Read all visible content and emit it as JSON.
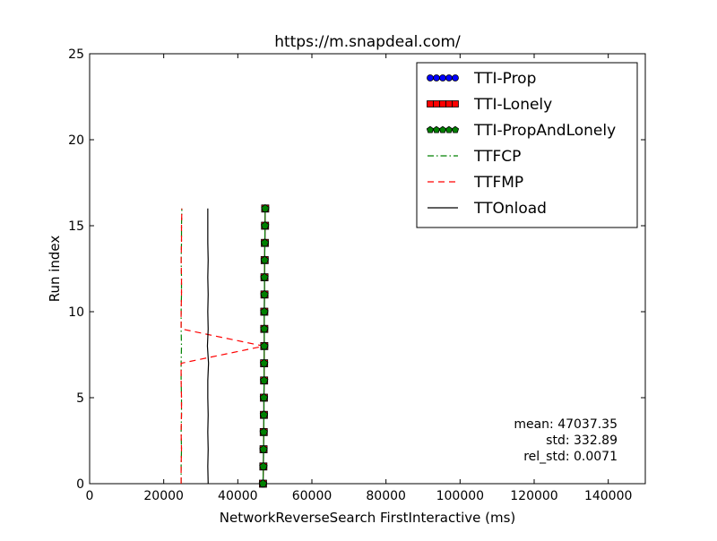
{
  "chart_data": {
    "type": "line",
    "title": "https://m.snapdeal.com/",
    "xlabel": "NetworkReverseSearch FirstInteractive (ms)",
    "ylabel": "Run index",
    "xlim": [
      0,
      150000
    ],
    "ylim": [
      0,
      25
    ],
    "xticks": [
      0,
      20000,
      40000,
      60000,
      80000,
      100000,
      120000,
      140000
    ],
    "xtick_labels": [
      "0",
      "20000",
      "40000",
      "60000",
      "80000",
      "100000",
      "120000",
      "140000"
    ],
    "yticks": [
      0,
      5,
      10,
      15,
      20,
      25
    ],
    "ytick_labels": [
      "0",
      "5",
      "10",
      "15",
      "20",
      "25"
    ],
    "grid": false,
    "legend_position": "top-right",
    "y": [
      0,
      1,
      2,
      3,
      4,
      5,
      6,
      7,
      8,
      9,
      10,
      11,
      12,
      13,
      14,
      15,
      16
    ],
    "series": [
      {
        "name": "TTI-Prop",
        "style": "line-marker",
        "marker": "circle",
        "color": "#0000ff",
        "line_color": "#0000ff",
        "x": [
          46800,
          46900,
          46950,
          47000,
          47050,
          47050,
          47100,
          47100,
          47150,
          47150,
          47150,
          47200,
          47200,
          47250,
          47300,
          47350,
          47400
        ]
      },
      {
        "name": "TTI-Lonely",
        "style": "line-marker",
        "marker": "square",
        "color": "#ff0000",
        "line_color": "#ff0000",
        "x": [
          46800,
          46900,
          46950,
          47000,
          47050,
          47050,
          47100,
          47100,
          47150,
          47150,
          47150,
          47200,
          47200,
          47250,
          47300,
          47350,
          47400
        ]
      },
      {
        "name": "TTI-PropAndLonely",
        "style": "line-marker",
        "marker": "pentagon",
        "color": "#008000",
        "line_color": "#008000",
        "x": [
          46800,
          46900,
          46950,
          47000,
          47050,
          47050,
          47100,
          47100,
          47150,
          47150,
          47150,
          47200,
          47200,
          47250,
          47300,
          47350,
          47400
        ]
      },
      {
        "name": "TTFCP",
        "style": "dashdot",
        "color": "#008000",
        "x": [
          24700,
          24700,
          24800,
          24700,
          24800,
          24800,
          24700,
          24700,
          24800,
          24700,
          24700,
          24800,
          24800,
          24700,
          24800,
          24800,
          24900
        ]
      },
      {
        "name": "TTFMP",
        "style": "dashed",
        "color": "#ff0000",
        "x": [
          24700,
          24700,
          24800,
          24700,
          24800,
          24800,
          24700,
          24700,
          47000,
          24700,
          24700,
          24800,
          24800,
          24700,
          24800,
          24800,
          24900
        ]
      },
      {
        "name": "TTOnload",
        "style": "solid",
        "color": "#000000",
        "x": [
          32000,
          31900,
          32000,
          31900,
          32000,
          31900,
          31900,
          32100,
          31800,
          32000,
          31900,
          32000,
          31900,
          32000,
          31900,
          31900,
          31900
        ]
      }
    ],
    "annotations": [
      "mean: 47037.35",
      "std: 332.89",
      "rel_std: 0.0071"
    ]
  }
}
